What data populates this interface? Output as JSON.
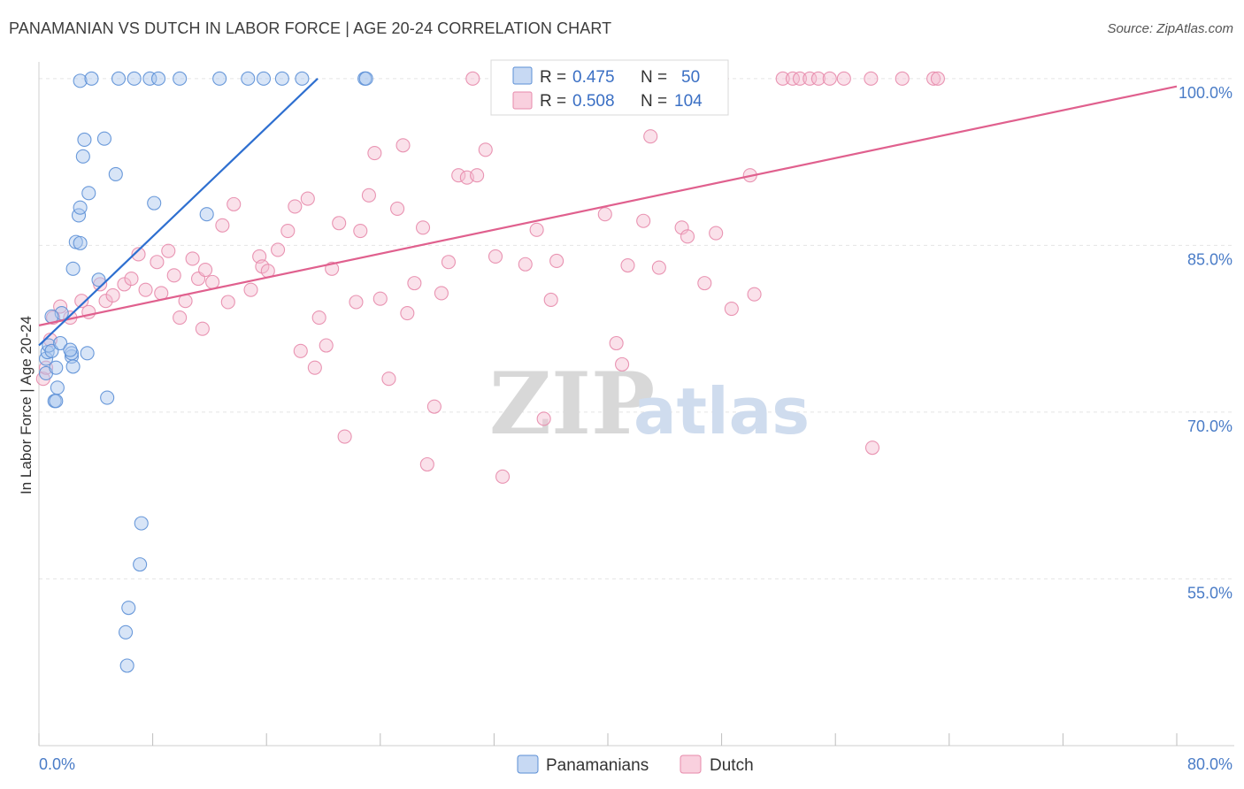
{
  "title": "PANAMANIAN VS DUTCH IN LABOR FORCE | AGE 20-24 CORRELATION CHART",
  "source": "Source: ZipAtlas.com",
  "colors": {
    "blue_fill": "#a9c6ee",
    "blue_stroke": "#5b8fd6",
    "blue_line": "#2e6fd0",
    "pink_fill": "#f5bcd0",
    "pink_stroke": "#e78aab",
    "pink_line": "#e0608e",
    "grid": "#e5e5e5",
    "tick_text": "#4a7cc7"
  },
  "legend": {
    "rows": [
      {
        "r_label": "R = ",
        "r_value": "0.475",
        "n_label": "N = ",
        "n_value": "50"
      },
      {
        "r_label": "R = ",
        "r_value": "0.508",
        "n_label": "N = ",
        "n_value": "104"
      }
    ]
  },
  "bottom_legend": [
    "Panamanians",
    "Dutch"
  ],
  "watermark": {
    "zip": "ZIP",
    "atlas": "atlas"
  },
  "chart_data": {
    "type": "scatter",
    "title": "PANAMANIAN VS DUTCH IN LABOR FORCE | AGE 20-24 CORRELATION CHART",
    "xlabel": "",
    "ylabel": "In Labor Force | Age 20-24",
    "xlim": [
      0,
      80
    ],
    "ylim": [
      40,
      101.5
    ],
    "x_tick_labels": [
      "0.0%",
      "80.0%"
    ],
    "y_ticks": [
      55,
      70,
      85,
      100
    ],
    "y_tick_labels": [
      "55.0%",
      "70.0%",
      "85.0%",
      "100.0%"
    ],
    "grid": true,
    "legend_position": "top-center",
    "series": [
      {
        "name": "Panamanians",
        "r": 0.475,
        "n": 50,
        "trend": {
          "x": [
            0.0,
            19.6
          ],
          "y": [
            76.0,
            100.0
          ]
        },
        "points": [
          [
            0.5,
            74.8
          ],
          [
            0.6,
            75.4
          ],
          [
            0.7,
            76.0
          ],
          [
            0.5,
            73.5
          ],
          [
            0.9,
            75.5
          ],
          [
            1.1,
            71.0
          ],
          [
            1.3,
            72.2
          ],
          [
            1.2,
            74.0
          ],
          [
            1.5,
            76.2
          ],
          [
            1.6,
            78.9
          ],
          [
            0.9,
            78.6
          ],
          [
            2.3,
            75.0
          ],
          [
            2.3,
            75.3
          ],
          [
            2.2,
            75.6
          ],
          [
            1.2,
            71.0
          ],
          [
            2.4,
            74.1
          ],
          [
            3.4,
            75.3
          ],
          [
            4.8,
            71.3
          ],
          [
            2.4,
            82.9
          ],
          [
            2.6,
            85.3
          ],
          [
            2.9,
            85.2
          ],
          [
            2.8,
            87.7
          ],
          [
            2.9,
            88.4
          ],
          [
            3.1,
            93.0
          ],
          [
            3.5,
            89.7
          ],
          [
            3.2,
            94.5
          ],
          [
            4.6,
            94.6
          ],
          [
            5.4,
            91.4
          ],
          [
            8.1,
            88.8
          ],
          [
            11.8,
            87.8
          ],
          [
            2.9,
            99.8
          ],
          [
            3.7,
            100.0
          ],
          [
            5.6,
            100.0
          ],
          [
            6.7,
            100.0
          ],
          [
            7.8,
            100.0
          ],
          [
            8.4,
            100.0
          ],
          [
            9.9,
            100.0
          ],
          [
            12.7,
            100.0
          ],
          [
            14.7,
            100.0
          ],
          [
            15.8,
            100.0
          ],
          [
            17.1,
            100.0
          ],
          [
            18.5,
            100.0
          ],
          [
            22.9,
            100.0
          ],
          [
            23.0,
            100.0
          ],
          [
            7.2,
            60.0
          ],
          [
            7.1,
            56.3
          ],
          [
            6.3,
            52.4
          ],
          [
            6.1,
            50.2
          ],
          [
            6.2,
            47.2
          ],
          [
            4.2,
            81.9
          ]
        ]
      },
      {
        "name": "Dutch",
        "r": 0.508,
        "n": 104,
        "trend": {
          "x": [
            0.0,
            80.0
          ],
          "y": [
            77.8,
            99.3
          ]
        },
        "points": [
          [
            0.3,
            73.0
          ],
          [
            0.5,
            74.0
          ],
          [
            0.8,
            76.5
          ],
          [
            1.0,
            78.5
          ],
          [
            1.5,
            79.5
          ],
          [
            2.2,
            78.5
          ],
          [
            3.0,
            80.0
          ],
          [
            3.5,
            79.0
          ],
          [
            4.3,
            81.5
          ],
          [
            4.7,
            80.0
          ],
          [
            5.2,
            80.5
          ],
          [
            6.0,
            81.5
          ],
          [
            6.5,
            82.0
          ],
          [
            7.0,
            84.2
          ],
          [
            7.5,
            81.0
          ],
          [
            8.3,
            83.5
          ],
          [
            8.6,
            80.7
          ],
          [
            9.1,
            84.5
          ],
          [
            9.5,
            82.3
          ],
          [
            9.9,
            78.5
          ],
          [
            10.3,
            80.0
          ],
          [
            10.8,
            83.8
          ],
          [
            11.2,
            82.0
          ],
          [
            11.5,
            77.5
          ],
          [
            11.7,
            82.8
          ],
          [
            12.2,
            81.7
          ],
          [
            12.9,
            86.8
          ],
          [
            13.3,
            79.9
          ],
          [
            13.7,
            88.7
          ],
          [
            14.9,
            81.0
          ],
          [
            15.5,
            84.0
          ],
          [
            15.7,
            83.1
          ],
          [
            16.1,
            82.7
          ],
          [
            16.8,
            84.6
          ],
          [
            17.5,
            86.3
          ],
          [
            18.0,
            88.5
          ],
          [
            18.4,
            75.5
          ],
          [
            18.9,
            89.2
          ],
          [
            19.4,
            74.0
          ],
          [
            19.7,
            78.5
          ],
          [
            20.2,
            76.0
          ],
          [
            20.6,
            82.9
          ],
          [
            21.1,
            87.0
          ],
          [
            21.5,
            67.8
          ],
          [
            22.3,
            79.9
          ],
          [
            22.6,
            86.3
          ],
          [
            23.2,
            89.5
          ],
          [
            23.6,
            93.3
          ],
          [
            24.0,
            80.2
          ],
          [
            24.6,
            73.0
          ],
          [
            25.2,
            88.3
          ],
          [
            25.6,
            94.0
          ],
          [
            25.9,
            78.9
          ],
          [
            26.4,
            81.6
          ],
          [
            27.0,
            86.6
          ],
          [
            27.3,
            65.3
          ],
          [
            27.8,
            70.5
          ],
          [
            28.3,
            80.7
          ],
          [
            28.8,
            83.5
          ],
          [
            29.5,
            91.3
          ],
          [
            30.1,
            91.1
          ],
          [
            30.8,
            91.3
          ],
          [
            31.4,
            93.6
          ],
          [
            32.1,
            84.0
          ],
          [
            32.6,
            64.2
          ],
          [
            34.2,
            83.3
          ],
          [
            35.0,
            86.4
          ],
          [
            35.5,
            69.4
          ],
          [
            36.0,
            80.1
          ],
          [
            36.4,
            83.6
          ],
          [
            39.8,
            87.8
          ],
          [
            40.6,
            76.2
          ],
          [
            41.0,
            74.3
          ],
          [
            41.4,
            83.2
          ],
          [
            42.5,
            87.2
          ],
          [
            43.0,
            94.8
          ],
          [
            43.6,
            83.0
          ],
          [
            45.2,
            86.6
          ],
          [
            45.6,
            85.8
          ],
          [
            46.8,
            81.6
          ],
          [
            47.6,
            86.1
          ],
          [
            48.7,
            79.3
          ],
          [
            50.0,
            91.3
          ],
          [
            50.3,
            80.6
          ],
          [
            58.6,
            66.8
          ],
          [
            30.5,
            100.0
          ],
          [
            32.6,
            100.0
          ],
          [
            34.8,
            100.0
          ],
          [
            37.2,
            100.0
          ],
          [
            40.7,
            100.0
          ],
          [
            43.3,
            100.0
          ],
          [
            45.6,
            100.0
          ],
          [
            48.0,
            100.0
          ],
          [
            52.3,
            100.0
          ],
          [
            53.0,
            100.0
          ],
          [
            53.5,
            100.0
          ],
          [
            54.2,
            100.0
          ],
          [
            54.8,
            100.0
          ],
          [
            55.6,
            100.0
          ],
          [
            56.6,
            100.0
          ],
          [
            58.5,
            100.0
          ],
          [
            60.7,
            100.0
          ],
          [
            62.9,
            100.0
          ],
          [
            63.2,
            100.0
          ]
        ]
      }
    ]
  }
}
